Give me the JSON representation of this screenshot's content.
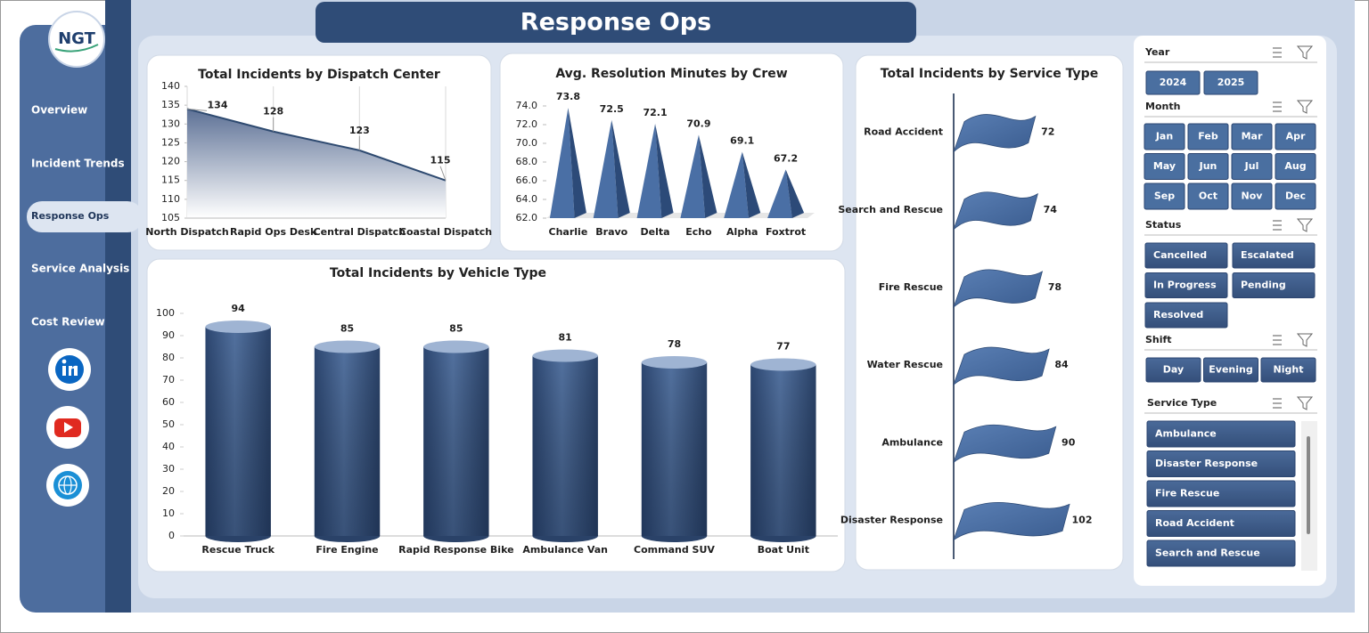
{
  "header": {
    "title": "Response Ops",
    "logo": "NGT"
  },
  "nav": {
    "items": [
      "Overview",
      "Incident Trends",
      "Response Ops",
      "Service Analysis",
      "Cost Review"
    ],
    "active": 2
  },
  "chart_data": [
    {
      "type": "area",
      "title": "Total Incidents by Dispatch Center",
      "categories": [
        "North Dispatch",
        "Rapid Ops Desk",
        "Central Dispatch",
        "Coastal Dispatch"
      ],
      "values": [
        134,
        128,
        123,
        115
      ],
      "color": "#2e4a70",
      "ylim": [
        105,
        140
      ],
      "yticks": [
        105,
        110,
        115,
        120,
        125,
        130,
        135,
        140
      ]
    },
    {
      "type": "pyramid",
      "title": "Avg. Resolution Minutes by Crew",
      "categories": [
        "Charlie",
        "Bravo",
        "Delta",
        "Echo",
        "Alpha",
        "Foxtrot"
      ],
      "values": [
        73.8,
        72.5,
        72.1,
        70.9,
        69.1,
        67.2
      ],
      "color": "#4a6fa5",
      "ylim": [
        62,
        74
      ],
      "yticks": [
        {
          "value": 62,
          "label": "62.0"
        },
        {
          "value": 64,
          "label": "64.0"
        },
        {
          "value": 66,
          "label": "66.0"
        },
        {
          "value": 68,
          "label": "68.0"
        },
        {
          "value": 70,
          "label": "70.0"
        },
        {
          "value": 72,
          "label": "72.0"
        },
        {
          "value": 74,
          "label": "74.0"
        }
      ]
    },
    {
      "type": "cylinder",
      "title": "Total Incidents by Vehicle Type",
      "categories": [
        "Rescue Truck",
        "Fire Engine",
        "Rapid Response Bike",
        "Ambulance Van",
        "Command SUV",
        "Boat Unit"
      ],
      "values": [
        94,
        85,
        85,
        81,
        78,
        77
      ],
      "color": "#3f5f8f",
      "ylim": [
        0,
        100
      ],
      "yticks": [
        0,
        10,
        20,
        30,
        40,
        50,
        60,
        70,
        80,
        90,
        100
      ]
    },
    {
      "type": "flag",
      "title": "Total Incidents by Service Type",
      "categories": [
        "Road Accident",
        "Search and Rescue",
        "Fire Rescue",
        "Water Rescue",
        "Ambulance",
        "Disaster Response"
      ],
      "values": [
        72,
        74,
        78,
        84,
        90,
        102
      ],
      "color": "#4a6fa5"
    }
  ],
  "slicers": [
    {
      "title": "Year",
      "items": [
        "2024",
        "2025"
      ]
    },
    {
      "title": "Month",
      "items": [
        "Jan",
        "Feb",
        "Mar",
        "Apr",
        "May",
        "Jun",
        "Jul",
        "Aug",
        "Sep",
        "Oct",
        "Nov",
        "Dec"
      ]
    },
    {
      "title": "Status",
      "items": [
        "Cancelled",
        "Escalated",
        "In Progress",
        "Pending",
        "Resolved"
      ]
    },
    {
      "title": "Shift",
      "items": [
        "Day",
        "Evening",
        "Night"
      ]
    },
    {
      "title": "Service Type",
      "items": [
        "Ambulance",
        "Disaster Response",
        "Fire Rescue",
        "Road Accident",
        "Search and Rescue"
      ]
    }
  ]
}
